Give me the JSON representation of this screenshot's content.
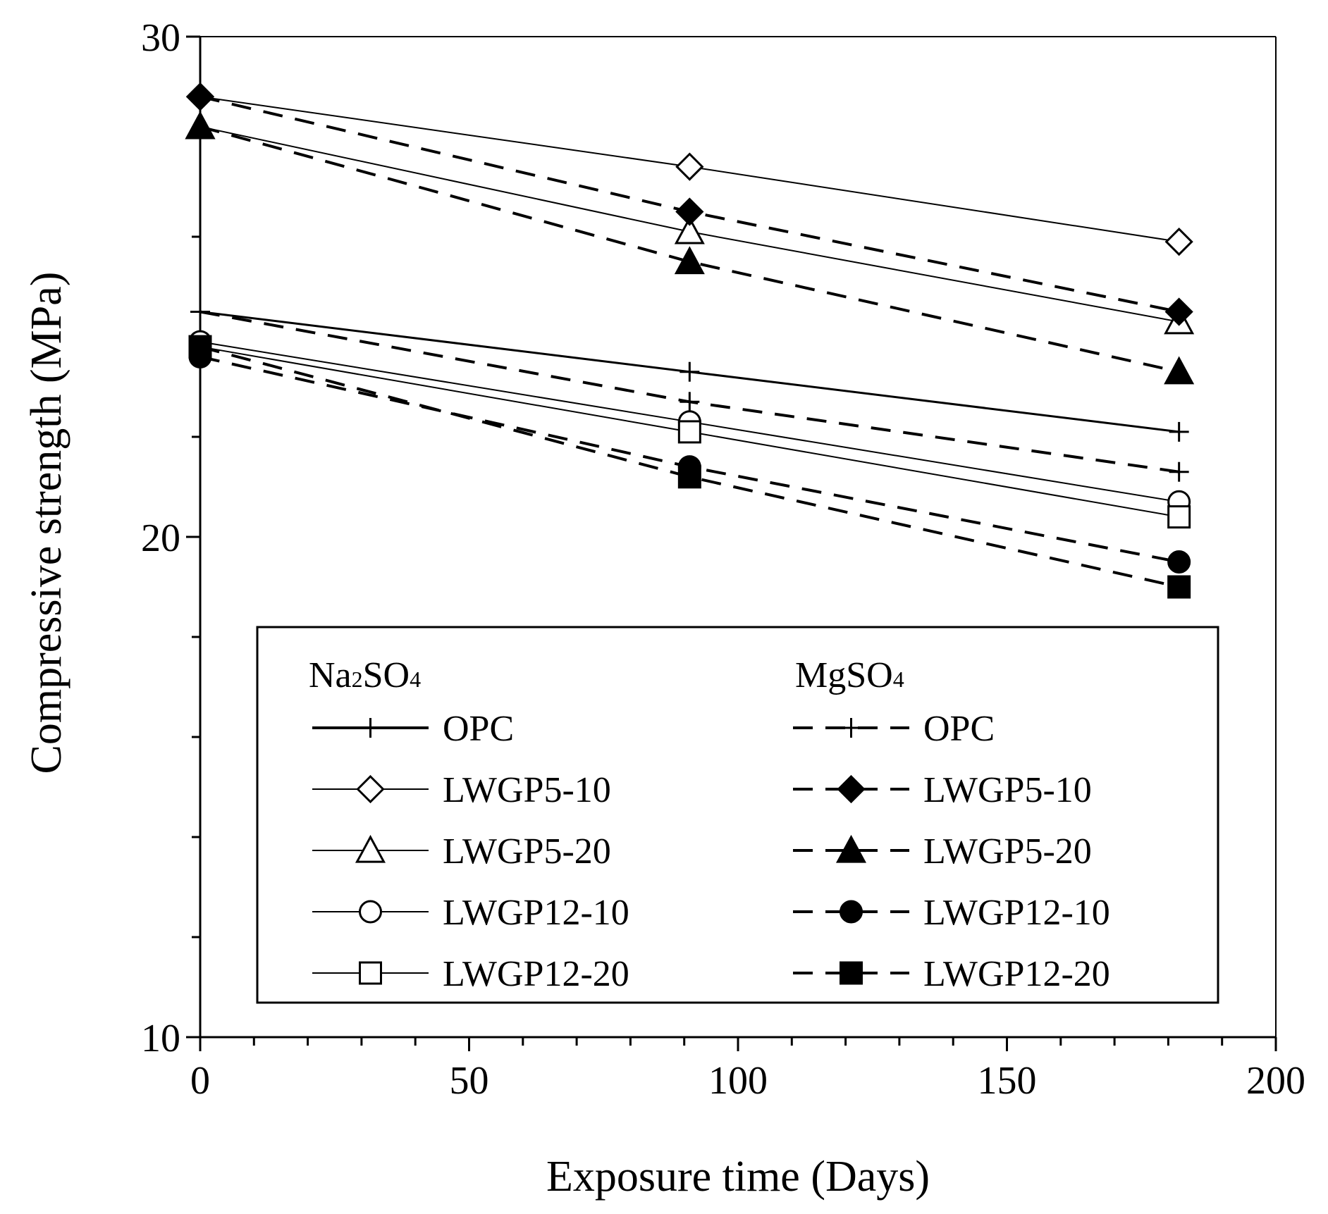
{
  "chart_data": {
    "type": "line",
    "title": "",
    "xlabel": "Exposure time (Days)",
    "ylabel": "Compressive strength (MPa)",
    "xlim": [
      0,
      200
    ],
    "ylim": [
      10,
      30
    ],
    "xticks": [
      0,
      50,
      100,
      150,
      200
    ],
    "yticks": [
      10,
      20,
      30
    ],
    "ytick_labels": [
      "10",
      "20",
      "30"
    ],
    "xtick_labels": [
      "0",
      "50",
      "100",
      "150",
      "200"
    ],
    "x": [
      0,
      91,
      182
    ],
    "legend": {
      "position": "lower-center",
      "groups": [
        {
          "id": "na",
          "label": "Na2SO4",
          "base": "Na",
          "sub1": "2",
          "mid": "SO",
          "sub2": "4"
        },
        {
          "id": "mg",
          "label": "MgSO4",
          "base": "Mg",
          "sub1": "",
          "mid": "SO",
          "sub2": "4"
        }
      ]
    },
    "series": [
      {
        "name": "OPC",
        "group": "Na2SO4",
        "marker": "plus",
        "filled": false,
        "dash": false,
        "bold": true,
        "values": [
          24.5,
          23.3,
          22.1
        ]
      },
      {
        "name": "LWGP5-10",
        "group": "Na2SO4",
        "marker": "diamond",
        "filled": false,
        "dash": false,
        "bold": false,
        "values": [
          28.8,
          27.4,
          25.9
        ]
      },
      {
        "name": "LWGP5-20",
        "group": "Na2SO4",
        "marker": "triangle",
        "filled": false,
        "dash": false,
        "bold": false,
        "values": [
          28.2,
          26.1,
          24.3
        ]
      },
      {
        "name": "LWGP12-10",
        "group": "Na2SO4",
        "marker": "circle",
        "filled": false,
        "dash": false,
        "bold": false,
        "values": [
          23.9,
          22.3,
          20.7
        ]
      },
      {
        "name": "LWGP12-20",
        "group": "Na2SO4",
        "marker": "square",
        "filled": false,
        "dash": false,
        "bold": false,
        "values": [
          23.8,
          22.1,
          20.4
        ]
      },
      {
        "name": "OPC",
        "group": "MgSO4",
        "marker": "plus",
        "filled": false,
        "dash": true,
        "bold": true,
        "values": [
          24.5,
          22.7,
          21.3
        ]
      },
      {
        "name": "LWGP5-10",
        "group": "MgSO4",
        "marker": "diamond",
        "filled": true,
        "dash": true,
        "bold": true,
        "values": [
          28.8,
          26.5,
          24.5
        ]
      },
      {
        "name": "LWGP5-20",
        "group": "MgSO4",
        "marker": "triangle",
        "filled": true,
        "dash": true,
        "bold": true,
        "values": [
          28.2,
          25.5,
          23.3
        ]
      },
      {
        "name": "LWGP12-10",
        "group": "MgSO4",
        "marker": "circle",
        "filled": true,
        "dash": true,
        "bold": true,
        "values": [
          23.6,
          21.4,
          19.5
        ]
      },
      {
        "name": "LWGP12-20",
        "group": "MgSO4",
        "marker": "square",
        "filled": true,
        "dash": true,
        "bold": true,
        "values": [
          23.8,
          21.2,
          19.0
        ]
      }
    ]
  }
}
